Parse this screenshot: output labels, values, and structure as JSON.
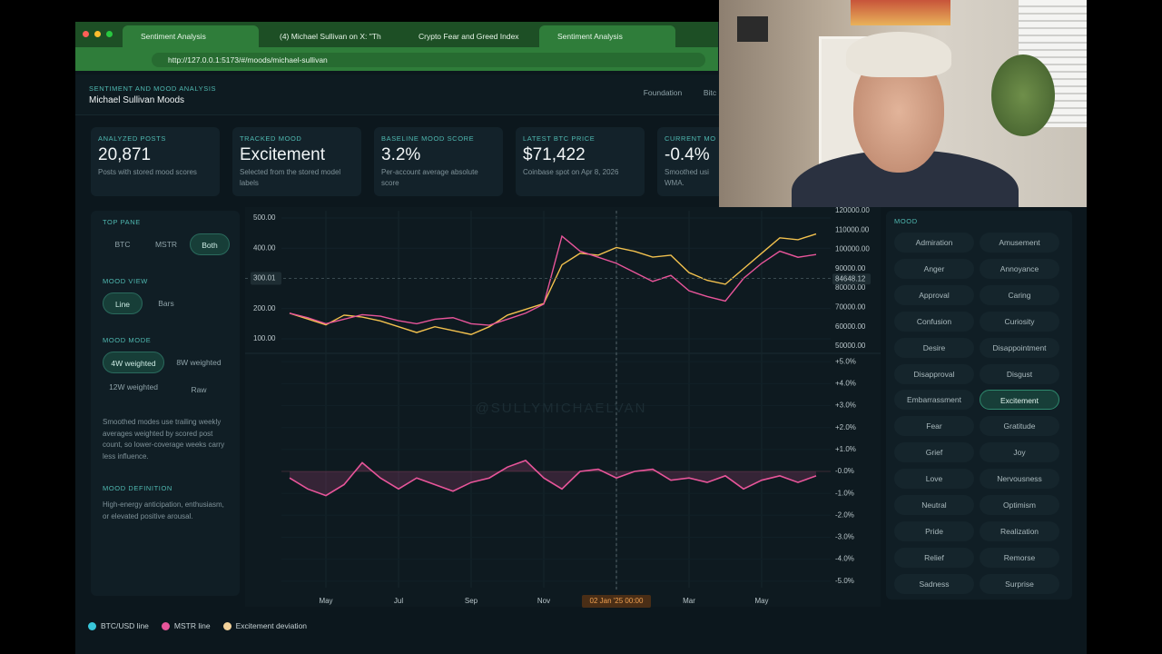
{
  "browser": {
    "tabs": [
      "Sentiment Analysis",
      "(4) Michael Sullivan on X: \"Th",
      "Crypto Fear and Greed Index",
      "Sentiment Analysis"
    ],
    "url": "http://127.0.0.1:5173/#/moods/michael-sullivan"
  },
  "header": {
    "kicker": "SENTIMENT AND MOOD ANALYSIS",
    "title": "Michael Sullivan Moods",
    "nav": [
      "Foundation",
      "Bitc"
    ]
  },
  "stats": [
    {
      "label": "ANALYZED POSTS",
      "value": "20,871",
      "note": [
        "Posts with stored mood scores"
      ]
    },
    {
      "label": "TRACKED MOOD",
      "value": "Excitement",
      "note": [
        "Selected from the stored model",
        "labels"
      ]
    },
    {
      "label": "BASELINE MOOD SCORE",
      "value": "3.2%",
      "note": [
        "Per-account average absolute",
        "score"
      ]
    },
    {
      "label": "LATEST BTC PRICE",
      "value": "$71,422",
      "note": [
        "Coinbase spot on Apr 8, 2026"
      ]
    },
    {
      "label": "CURRENT MO",
      "value": "-0.4%",
      "note": [
        "Smoothed usi",
        "WMA."
      ]
    }
  ],
  "sidebar": {
    "top_pane": {
      "title": "TOP PANE",
      "options": [
        "BTC",
        "MSTR",
        "Both"
      ],
      "active": "Both"
    },
    "mood_view": {
      "title": "MOOD VIEW",
      "options": [
        "Line",
        "Bars"
      ],
      "active": "Line"
    },
    "mood_mode": {
      "title": "MOOD MODE",
      "options": [
        "4W weighted",
        "8W weighted",
        "12W weighted",
        "Raw"
      ],
      "active": "4W weighted",
      "note": "Smoothed modes use trailing weekly averages weighted by scored post count, so lower-coverage weeks carry less influence."
    },
    "definition": {
      "title": "MOOD DEFINITION",
      "text": "High-energy anticipation, enthusiasm, or elevated positive arousal."
    }
  },
  "chart": {
    "type": "line",
    "categories": [
      null,
      null,
      "May",
      null,
      null,
      null,
      "Jul",
      null,
      null,
      null,
      "Sep",
      null,
      null,
      null,
      "Nov",
      null,
      null,
      null,
      "02 Jan '25  00:00",
      null,
      null,
      null,
      "Mar",
      null,
      null,
      null,
      "May",
      null,
      null,
      null
    ],
    "series": [
      {
        "color": "#f2c14e",
        "axis": "y2",
        "values": [
          67000,
          64000,
          61000,
          66000,
          65000,
          63000,
          60000,
          57000,
          60000,
          58000,
          56000,
          60000,
          66000,
          69000,
          72000,
          92000,
          98000,
          97000,
          101000,
          99000,
          96000,
          97000,
          88000,
          84000,
          82000,
          90000,
          98000,
          106000,
          105000,
          108000
        ]
      },
      {
        "color": "#e8559a",
        "values": [
          185,
          170,
          150,
          165,
          180,
          175,
          160,
          150,
          165,
          170,
          150,
          145,
          165,
          185,
          215,
          440,
          390,
          370,
          350,
          320,
          290,
          310,
          259,
          240,
          225,
          300,
          350,
          390,
          370,
          379
        ]
      }
    ],
    "ylim": [
      55,
      524
    ],
    "yticks": [
      {
        "value": 500,
        "label": "500.00"
      },
      {
        "value": 400,
        "label": "400.00"
      },
      {
        "value": 200,
        "label": "200.00"
      },
      {
        "value": 100,
        "label": "100.00"
      }
    ],
    "y2lim": [
      46700,
      120000
    ],
    "y2ticks": [
      {
        "value": 120000,
        "label": "120000.00"
      },
      {
        "value": 110000,
        "label": "110000.00"
      },
      {
        "value": 100000,
        "label": "100000.00"
      },
      {
        "value": 90000,
        "label": "90000.00"
      },
      {
        "value": 80000,
        "label": "80000.00"
      },
      {
        "value": 70000,
        "label": "70000.00"
      },
      {
        "value": 60000,
        "label": "60000.00"
      },
      {
        "value": 50000,
        "label": "50000.00"
      }
    ],
    "crosshair": {
      "x_label": "02 Jan '25  00:00",
      "y_label": {
        "value": 300.01,
        "label": "300.01"
      },
      "y2_label": {
        "value": 84648.12,
        "label": "84648.12"
      }
    },
    "watermark": "@SULLYMICHAELVAN"
  },
  "deviation": {
    "type": "area",
    "color": "#e8559a",
    "values": [
      -0.3,
      -0.8,
      -1.1,
      -0.6,
      0.4,
      -0.3,
      -0.8,
      -0.3,
      -0.6,
      -0.9,
      -0.5,
      -0.3,
      0.2,
      0.5,
      -0.3,
      -0.8,
      0.0,
      0.1,
      -0.3,
      0.0,
      0.1,
      -0.4,
      -0.3,
      -0.5,
      -0.2,
      -0.8,
      -0.4,
      -0.2,
      -0.5,
      -0.2
    ],
    "ylim": [
      -5.3,
      5.3
    ],
    "yticks": [
      {
        "value": 5,
        "label": "+5.0%"
      },
      {
        "value": 4,
        "label": "+4.0%"
      },
      {
        "value": 3,
        "label": "+3.0%"
      },
      {
        "value": 2,
        "label": "+2.0%"
      },
      {
        "value": 1,
        "label": "+1.0%"
      },
      {
        "value": 0,
        "label": "-0.0%"
      },
      {
        "value": -1,
        "label": "-1.0%"
      },
      {
        "value": -2,
        "label": "-2.0%"
      },
      {
        "value": -3,
        "label": "-3.0%"
      },
      {
        "value": -4,
        "label": "-4.0%"
      },
      {
        "value": -5,
        "label": "-5.0%"
      }
    ]
  },
  "moods": {
    "title": "MOOD",
    "active": "Excitement",
    "items": [
      "Admiration",
      "Amusement",
      "Anger",
      "Annoyance",
      "Approval",
      "Caring",
      "Confusion",
      "Curiosity",
      "Desire",
      "Disappointment",
      "Disapproval",
      "Disgust",
      "Embarrassment",
      "Excitement",
      "Fear",
      "Gratitude",
      "Grief",
      "Joy",
      "Love",
      "Nervousness",
      "Neutral",
      "Optimism",
      "Pride",
      "Realization",
      "Relief",
      "Remorse",
      "Sadness",
      "Surprise"
    ]
  },
  "legend": [
    {
      "label": "BTC/USD line",
      "color": "#38c6d9"
    },
    {
      "label": "MSTR line",
      "color": "#e8559a"
    },
    {
      "label": "Excitement deviation",
      "color": "#f3d29a"
    }
  ]
}
